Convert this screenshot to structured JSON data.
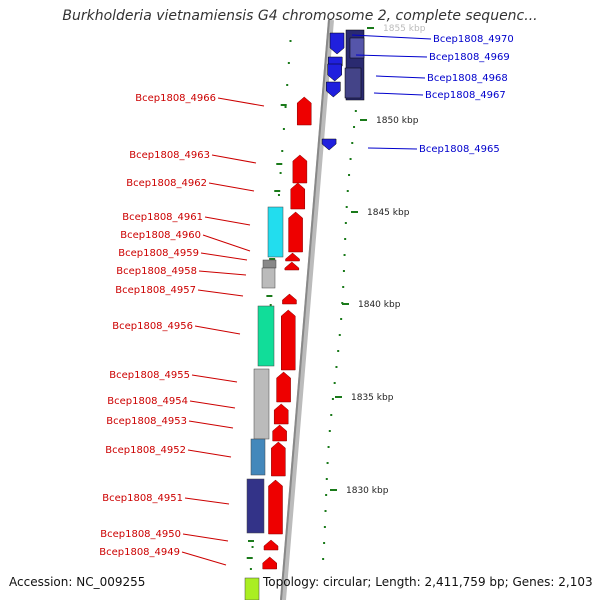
{
  "title": "Burkholderia vietnamiensis G4 chromosome 2, complete sequenc...",
  "footer": {
    "accession": "Accession: NC_009255",
    "summary": "Topology: circular; Length: 2,411,759 bp; Genes: 2,103"
  },
  "colors": {
    "reverse_gene_label": "#cc0000",
    "forward_gene_label": "#0000cc",
    "backbone": "#999999",
    "tick": "#1a7a1a"
  },
  "kbp_ticks": [
    "1855 kbp",
    "1850 kbp",
    "1845 kbp",
    "1840 kbp",
    "1835 kbp",
    "1830 kbp"
  ],
  "genes_forward": [
    "Bcep1808_4970",
    "Bcep1808_4969",
    "Bcep1808_4968",
    "Bcep1808_4967",
    "Bcep1808_4965"
  ],
  "genes_reverse": [
    "Bcep1808_4966",
    "Bcep1808_4963",
    "Bcep1808_4962",
    "Bcep1808_4961",
    "Bcep1808_4960",
    "Bcep1808_4959",
    "Bcep1808_4958",
    "Bcep1808_4957",
    "Bcep1808_4956",
    "Bcep1808_4955",
    "Bcep1808_4954",
    "Bcep1808_4953",
    "Bcep1808_4952",
    "Bcep1808_4951",
    "Bcep1808_4950",
    "Bcep1808_4949"
  ]
}
